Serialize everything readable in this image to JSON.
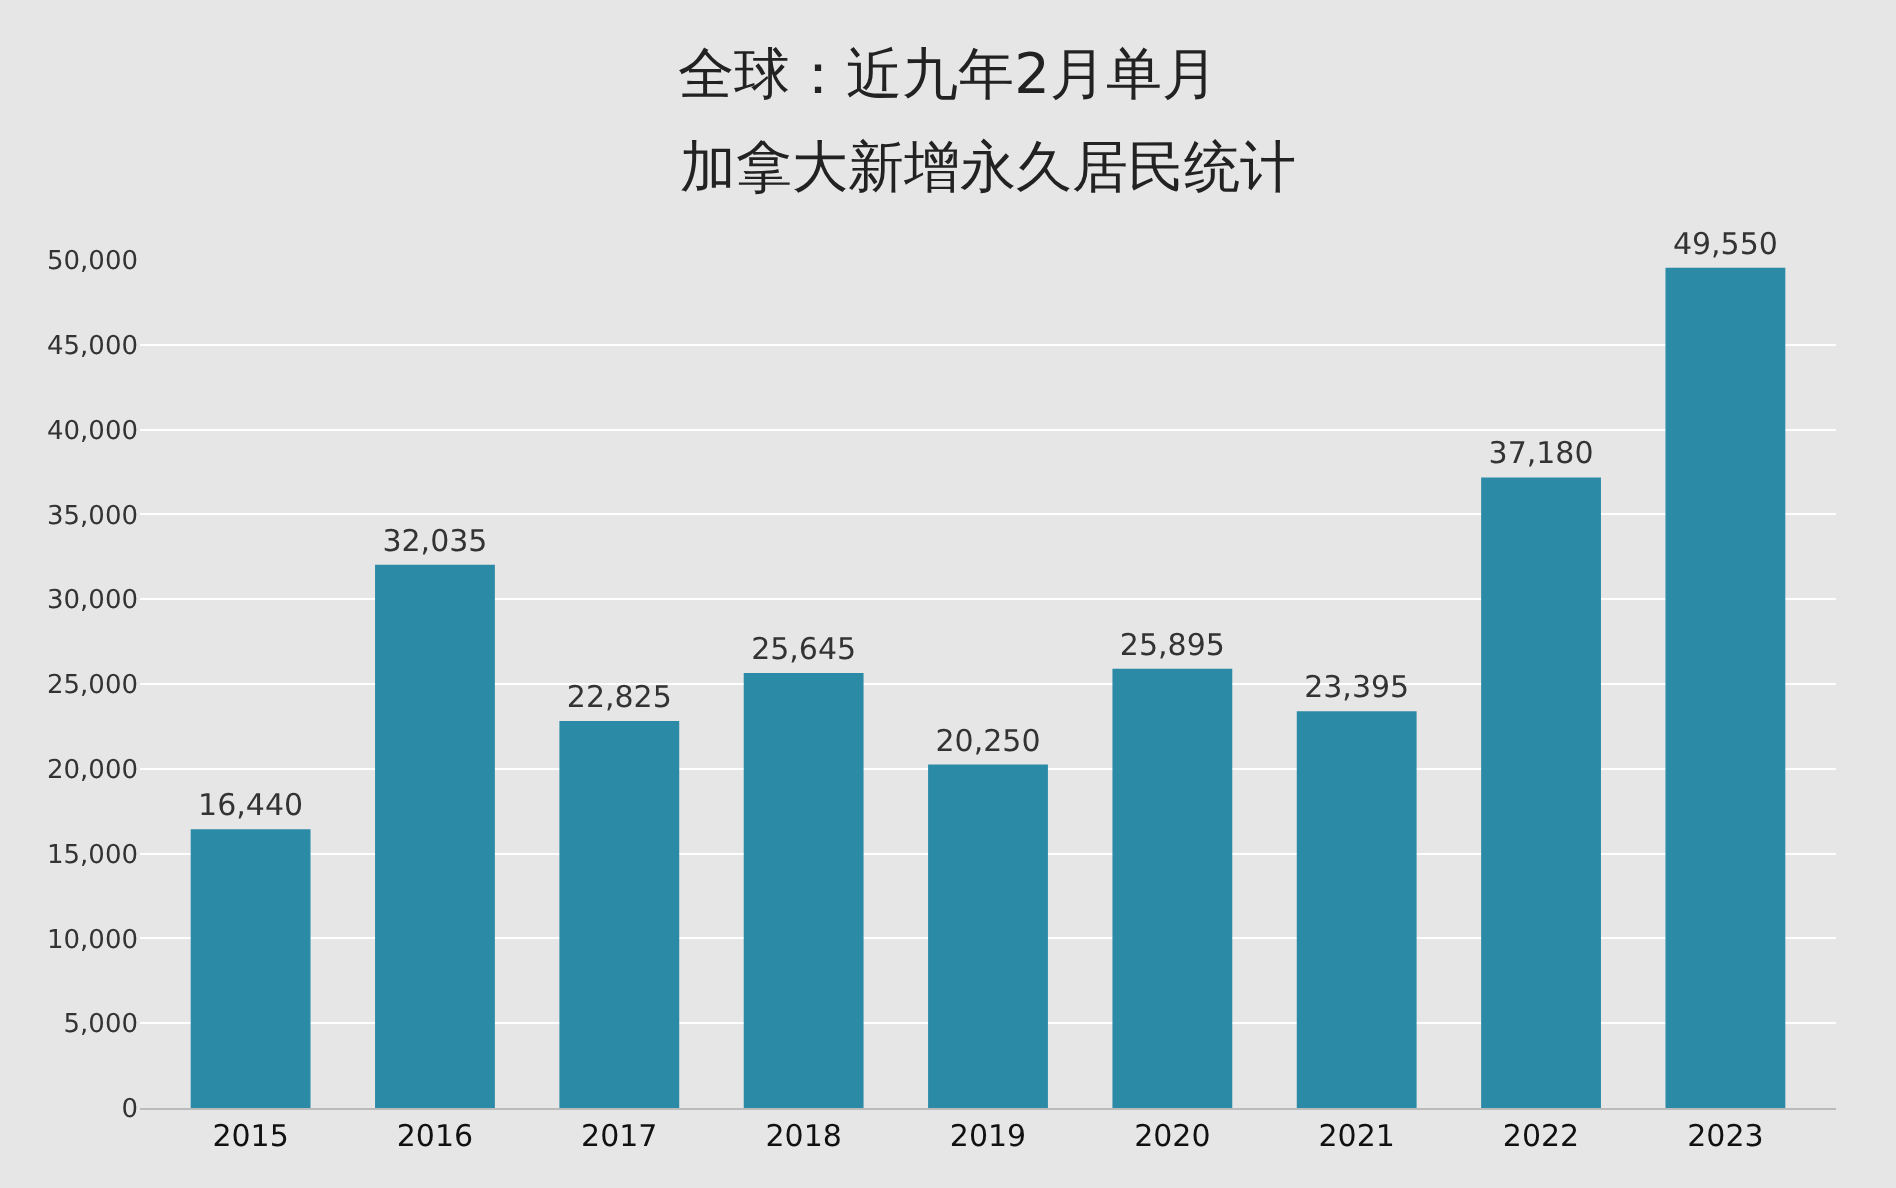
{
  "chart_data": {
    "type": "bar",
    "title": "全球：近九年2月单月",
    "subtitle": "加拿大新增永久居民统计",
    "categories": [
      "2015",
      "2016",
      "2017",
      "2018",
      "2019",
      "2020",
      "2021",
      "2022",
      "2023"
    ],
    "values": [
      16440,
      32035,
      22825,
      25645,
      20250,
      25895,
      23395,
      37180,
      49550
    ],
    "color": "#2b8aa6",
    "ylim": [
      0,
      50000
    ],
    "yticks": [
      {
        "value": 0,
        "label": "0"
      },
      {
        "value": 5000,
        "label": "5,000"
      },
      {
        "value": 10000,
        "label": "10,000"
      },
      {
        "value": 15000,
        "label": "15,000"
      },
      {
        "value": 20000,
        "label": "20,000"
      },
      {
        "value": 25000,
        "label": "25,000"
      },
      {
        "value": 30000,
        "label": "30,000"
      },
      {
        "value": 35000,
        "label": "35,000"
      },
      {
        "value": 40000,
        "label": "40,000"
      },
      {
        "value": 45000,
        "label": "45,000"
      },
      {
        "value": 50000,
        "label": "50,000"
      }
    ],
    "value_labels": [
      "16,440",
      "32,035",
      "22,825",
      "25,645",
      "20,250",
      "25,895",
      "23,395",
      "37,180",
      "49,550"
    ],
    "grid": "y"
  }
}
